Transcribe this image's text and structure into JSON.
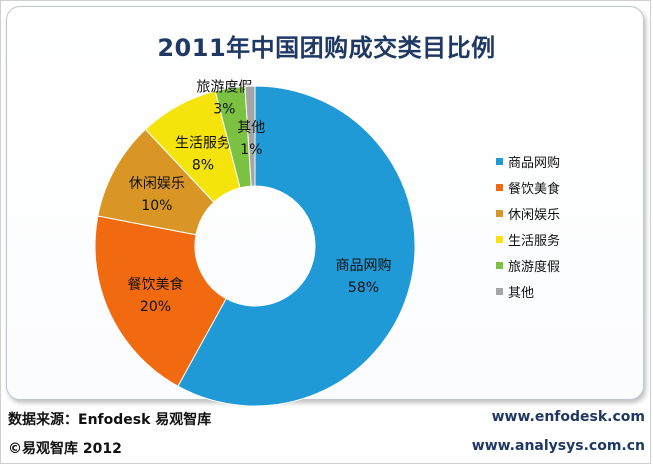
{
  "chart_data": {
    "type": "pie",
    "title": "2011年中国团购成交类目比例",
    "slices": [
      {
        "label": "商品网购",
        "value": 58,
        "value_label": "58%",
        "color": "#1f9ad6"
      },
      {
        "label": "餐饮美食",
        "value": 20,
        "value_label": "20%",
        "color": "#f26a10"
      },
      {
        "label": "休闲娱乐",
        "value": 10,
        "value_label": "10%",
        "color": "#d99624"
      },
      {
        "label": "生活服务",
        "value": 8,
        "value_label": "8%",
        "color": "#f4e40c"
      },
      {
        "label": "旅游度假",
        "value": 3,
        "value_label": "3%",
        "color": "#7cc242"
      },
      {
        "label": "其他",
        "value": 1,
        "value_label": "1%",
        "color": "#a5a5a5"
      }
    ],
    "style": "doughnut",
    "legend_position": "right"
  },
  "footer": {
    "source": "数据来源：Enfodesk 易观智库",
    "copyright": "©易观智库 2012",
    "url1": "www.enfodesk.com",
    "url2": "www.analysys.com.cn"
  }
}
